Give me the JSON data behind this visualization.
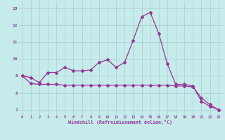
{
  "xlabel": "Windchill (Refroidissement éolien,°C)",
  "background_color": "#c5eceb",
  "grid_color": "#b0d0d0",
  "line_color": "#993399",
  "x_ticks": [
    0,
    1,
    2,
    3,
    4,
    5,
    6,
    7,
    8,
    9,
    10,
    11,
    12,
    13,
    14,
    15,
    16,
    17,
    18,
    19,
    20,
    21,
    22,
    23
  ],
  "y_ticks": [
    7,
    8,
    9,
    10,
    11,
    12,
    13
  ],
  "ylim": [
    6.7,
    13.4
  ],
  "xlim": [
    -0.5,
    23.5
  ],
  "line1_x": [
    0,
    1,
    2,
    3,
    4,
    5,
    6,
    7,
    8,
    9,
    10,
    11,
    12,
    13,
    14,
    15,
    16,
    17,
    18,
    19,
    20,
    21,
    22,
    23
  ],
  "line1_y": [
    9.0,
    8.9,
    8.6,
    9.2,
    9.2,
    9.5,
    9.3,
    9.3,
    9.35,
    9.8,
    9.95,
    9.5,
    9.8,
    11.1,
    12.5,
    12.75,
    11.5,
    9.7,
    8.5,
    8.5,
    8.4,
    7.5,
    7.2,
    7.0
  ],
  "line2_x": [
    0,
    1,
    2,
    3,
    4,
    5,
    6,
    7,
    8,
    9,
    10,
    11,
    12,
    13,
    14,
    15,
    16,
    17,
    18,
    19,
    20,
    21,
    22,
    23
  ],
  "line2_y": [
    9.0,
    8.55,
    8.5,
    8.5,
    8.5,
    8.45,
    8.45,
    8.45,
    8.45,
    8.45,
    8.45,
    8.45,
    8.45,
    8.45,
    8.45,
    8.45,
    8.45,
    8.45,
    8.4,
    8.4,
    8.35,
    7.7,
    7.3,
    7.0
  ]
}
